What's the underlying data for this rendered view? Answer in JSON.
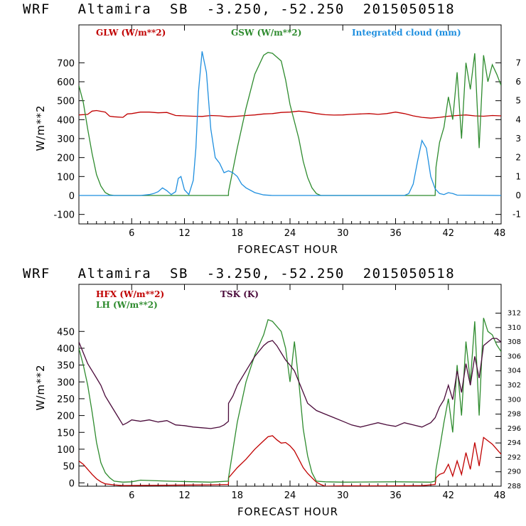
{
  "chart_data": [
    {
      "type": "line",
      "title": "WRF   Altamira  SB  -3.250, -52.250  2015050518",
      "xlabel": "FORECAST HOUR",
      "ylabel": "W/m**2",
      "xlim": [
        0,
        48
      ],
      "ylim": [
        -150,
        900
      ],
      "y2lim": [
        -1.5,
        9
      ],
      "xticks": [
        6,
        12,
        18,
        24,
        30,
        36,
        42,
        48
      ],
      "yticks": [
        -100,
        0,
        100,
        200,
        300,
        400,
        500,
        600,
        700
      ],
      "y2ticks": [
        -1,
        0,
        1,
        2,
        3,
        4,
        5,
        6,
        7
      ],
      "series": [
        {
          "name": "GLW (W/m**2)",
          "axis": "left",
          "color": "#c00000",
          "x": [
            0,
            1,
            1.5,
            2,
            3,
            3.5,
            4,
            5,
            5.5,
            6,
            7,
            8,
            9,
            10,
            11,
            12,
            13,
            14,
            15,
            16,
            17,
            18,
            19,
            20,
            21,
            22,
            23,
            24,
            25,
            26,
            27,
            28,
            29,
            30,
            31,
            32,
            33,
            34,
            35,
            36,
            37,
            38,
            39,
            40,
            41,
            42,
            43,
            44,
            45,
            46,
            47,
            48
          ],
          "y": [
            425,
            428,
            445,
            448,
            440,
            418,
            415,
            412,
            430,
            432,
            440,
            440,
            436,
            438,
            422,
            420,
            418,
            417,
            422,
            420,
            415,
            418,
            422,
            425,
            430,
            432,
            438,
            440,
            445,
            440,
            432,
            426,
            424,
            425,
            428,
            430,
            432,
            428,
            432,
            440,
            432,
            420,
            412,
            408,
            412,
            418,
            422,
            425,
            420,
            418,
            422,
            420
          ]
        },
        {
          "name": "GSW (W/m**2)",
          "axis": "left",
          "color": "#2e8b2e",
          "x": [
            0,
            0.5,
            1,
            1.5,
            2,
            2.5,
            3,
            3.5,
            4,
            17,
            17.01,
            18,
            19,
            20,
            21,
            21.5,
            22,
            23,
            23.5,
            24,
            25,
            25.5,
            26,
            26.5,
            27,
            27.5,
            40.5,
            40.6,
            41,
            41.5,
            42,
            42.5,
            43,
            43.5,
            44,
            44.5,
            45,
            45.5,
            46,
            46.5,
            47,
            47.5,
            48
          ],
          "y": [
            580,
            490,
            350,
            220,
            110,
            50,
            15,
            3,
            0,
            0,
            20,
            250,
            460,
            640,
            740,
            755,
            750,
            710,
            610,
            480,
            300,
            180,
            95,
            40,
            10,
            0,
            0,
            150,
            280,
            360,
            520,
            400,
            650,
            300,
            700,
            560,
            750,
            250,
            740,
            600,
            690,
            640,
            580
          ]
        },
        {
          "name": "Integrated cloud (mm)",
          "axis": "right",
          "color": "#1f8fdf",
          "x": [
            0,
            7,
            8,
            8.5,
            9,
            9.5,
            10,
            10.5,
            11,
            11.3,
            11.6,
            12,
            12.5,
            13,
            13.3,
            13.6,
            14,
            14.5,
            15,
            15.5,
            16,
            16.5,
            17,
            17.5,
            18,
            18.5,
            19,
            20,
            21,
            22,
            30,
            37,
            37.5,
            38,
            38.5,
            39,
            39.5,
            40,
            40.5,
            41,
            41.5,
            42,
            42.5,
            43,
            48
          ],
          "y": [
            0,
            0,
            0.05,
            0.1,
            0.2,
            0.4,
            0.25,
            0.05,
            0.2,
            0.9,
            1.0,
            0.3,
            0.05,
            0.8,
            2.5,
            5.5,
            7.6,
            6.5,
            3.5,
            2.0,
            1.7,
            1.2,
            1.3,
            1.2,
            1.0,
            0.6,
            0.4,
            0.15,
            0.03,
            0,
            0,
            0,
            0.1,
            0.6,
            1.8,
            2.9,
            2.5,
            1.0,
            0.35,
            0.1,
            0.05,
            0.15,
            0.1,
            0.02,
            0
          ]
        }
      ]
    },
    {
      "type": "line",
      "title": "WRF   Altamira  SB  -3.250, -52.250  2015050518",
      "xlabel": "FORECAST HOUR",
      "ylabel": "W/m**2",
      "xlim": [
        0,
        48
      ],
      "ylim": [
        -10,
        590
      ],
      "y2lim": [
        288,
        316
      ],
      "xticks": [
        6,
        12,
        18,
        24,
        30,
        36,
        42,
        48
      ],
      "yticks": [
        0,
        50,
        100,
        150,
        200,
        250,
        300,
        350,
        400,
        450
      ],
      "y2ticks": [
        288,
        290,
        292,
        294,
        296,
        298,
        300,
        302,
        304,
        306,
        308,
        310,
        312
      ],
      "series": [
        {
          "name": "HFX (W/m**2)",
          "axis": "left",
          "color": "#c00000",
          "x": [
            0,
            0.5,
            1,
            1.5,
            2,
            2.5,
            3,
            4,
            5,
            10,
            15,
            17,
            17.01,
            18,
            19,
            20,
            21,
            21.5,
            22,
            22.5,
            23,
            23.5,
            24,
            24.5,
            25,
            25.5,
            26,
            26.5,
            27,
            27.5,
            28,
            30,
            36,
            39,
            40.5,
            40.6,
            41,
            41.5,
            42,
            42.5,
            43,
            43.5,
            44,
            44.5,
            45,
            45.5,
            46,
            46.5,
            47,
            47.5,
            48
          ],
          "y": [
            65,
            55,
            40,
            25,
            12,
            3,
            -3,
            -6,
            -8,
            -7,
            -6,
            -5,
            15,
            45,
            70,
            100,
            125,
            137,
            140,
            128,
            118,
            120,
            110,
            95,
            70,
            45,
            28,
            15,
            2,
            -5,
            -10,
            -9,
            -9,
            -8,
            -5,
            15,
            25,
            30,
            55,
            20,
            65,
            25,
            90,
            40,
            120,
            50,
            135,
            125,
            115,
            100,
            85
          ]
        },
        {
          "name": "LH (W/m**2)",
          "axis": "left",
          "color": "#2e8b2e",
          "x": [
            0,
            0.5,
            1,
            1.5,
            2,
            2.5,
            3,
            3.5,
            4,
            5,
            6,
            7,
            10,
            15,
            17,
            17.01,
            18,
            19,
            20,
            21,
            21.5,
            22,
            23,
            23.5,
            24,
            24.5,
            25,
            25.5,
            26,
            26.5,
            27,
            28,
            30,
            36,
            40,
            40.5,
            40.6,
            41,
            41.5,
            42,
            42.5,
            43,
            43.5,
            44,
            44.5,
            45,
            45.5,
            46,
            46.5,
            47,
            47.5,
            48
          ],
          "y": [
            400,
            350,
            290,
            210,
            120,
            60,
            30,
            15,
            5,
            2,
            3,
            8,
            5,
            2,
            5,
            15,
            180,
            300,
            380,
            440,
            485,
            480,
            450,
            400,
            300,
            420,
            300,
            160,
            80,
            30,
            5,
            3,
            2,
            3,
            2,
            5,
            40,
            100,
            180,
            250,
            150,
            350,
            200,
            420,
            300,
            480,
            200,
            490,
            450,
            440,
            410,
            390
          ]
        },
        {
          "name": "TSK (K)",
          "axis": "right",
          "color": "#4a0a3a",
          "x": [
            0,
            0.5,
            1,
            1.5,
            2,
            2.5,
            3,
            3.5,
            4,
            4.5,
            5,
            5.5,
            6,
            7,
            8,
            9,
            10,
            11,
            12,
            13,
            14,
            15,
            16,
            16.5,
            17,
            17.01,
            17.5,
            18,
            19,
            20,
            21,
            21.5,
            22,
            22.5,
            23,
            23.5,
            24,
            24.5,
            25,
            25.5,
            26,
            27,
            28,
            29,
            30,
            31,
            32,
            33,
            34,
            35,
            36,
            37,
            38,
            39,
            40,
            40.5,
            41,
            41.5,
            42,
            42.5,
            43,
            43.5,
            44,
            44.5,
            45,
            45.5,
            46,
            46.5,
            47,
            47.5,
            48
          ],
          "y": [
            308,
            306.5,
            305,
            304,
            303,
            302,
            300.5,
            299.5,
            298.5,
            297.5,
            296.5,
            296.8,
            297.2,
            297,
            297.2,
            296.9,
            297.1,
            296.5,
            296.4,
            296.2,
            296.1,
            296,
            296.2,
            296.5,
            297,
            299.5,
            300.5,
            302,
            304,
            306,
            307.5,
            308,
            308.2,
            307.5,
            306.5,
            305.5,
            304.8,
            304,
            302.5,
            301,
            299.5,
            298.5,
            298,
            297.5,
            297,
            296.5,
            296.2,
            296.5,
            296.8,
            296.5,
            296.3,
            296.8,
            296.5,
            296.2,
            296.8,
            297.5,
            299,
            300,
            302,
            300,
            304,
            301,
            305,
            302,
            306,
            303,
            307.5,
            308,
            308.5,
            308.5,
            308
          ]
        }
      ]
    }
  ]
}
